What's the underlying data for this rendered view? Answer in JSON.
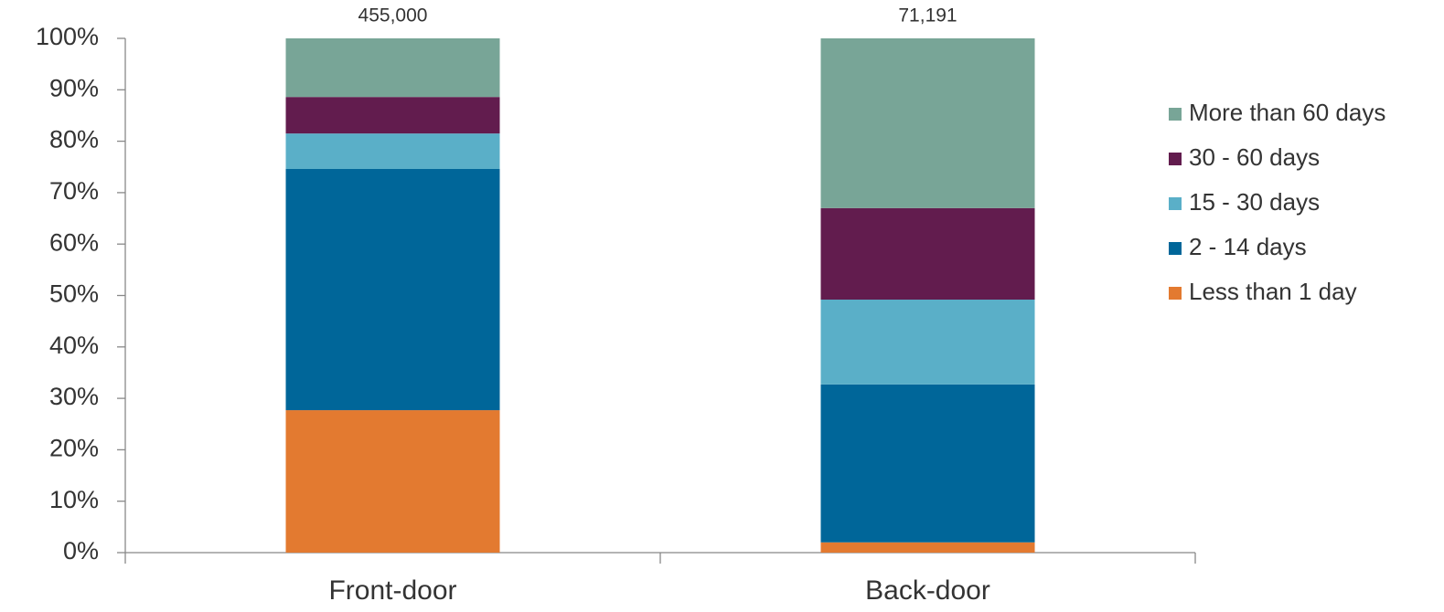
{
  "chart_data": {
    "type": "stacked_bar",
    "categories": [
      "Front-door",
      "Back-door"
    ],
    "annotations": [
      "455,000",
      "71,191"
    ],
    "series": [
      {
        "name": "Less than 1 day",
        "color": "#e37a30",
        "values": [
          27.7,
          2.0
        ]
      },
      {
        "name": "2 - 14 days",
        "color": "#006699",
        "values": [
          46.9,
          30.7
        ]
      },
      {
        "name": "15 - 30 days",
        "color": "#5aafc8",
        "values": [
          6.9,
          16.5
        ]
      },
      {
        "name": "30 - 60 days",
        "color": "#621c4e",
        "values": [
          7.1,
          17.8
        ]
      },
      {
        "name": "More than 60 days",
        "color": "#78a597",
        "values": [
          11.4,
          33.0
        ]
      }
    ],
    "ylim": [
      0,
      100
    ],
    "yticks": [
      {
        "value": 0,
        "label": "0%"
      },
      {
        "value": 10,
        "label": "10%"
      },
      {
        "value": 20,
        "label": "20%"
      },
      {
        "value": 30,
        "label": "30%"
      },
      {
        "value": 40,
        "label": "40%"
      },
      {
        "value": 50,
        "label": "50%"
      },
      {
        "value": 60,
        "label": "60%"
      },
      {
        "value": 70,
        "label": "70%"
      },
      {
        "value": 80,
        "label": "80%"
      },
      {
        "value": 90,
        "label": "90%"
      },
      {
        "value": 100,
        "label": "100%"
      }
    ],
    "grid": false,
    "legend": "right"
  }
}
